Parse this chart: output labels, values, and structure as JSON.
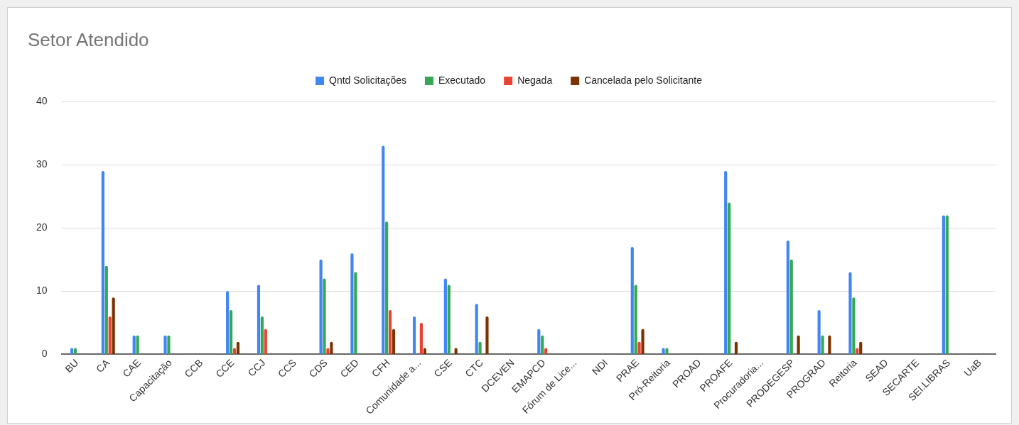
{
  "chart_data": {
    "type": "bar",
    "title": "Setor Atendido",
    "categories": [
      "BU",
      "CA",
      "CAE",
      "Capacitação",
      "CCB",
      "CCE",
      "CCJ",
      "CCS",
      "CDS",
      "CED",
      "CFH",
      "Comunidade a...",
      "CSE",
      "CTC",
      "DCEVEN",
      "EMAPCD",
      "Fórum de Lice...",
      "NDI",
      "PRAE",
      "Pró-Reitoria",
      "PROAD",
      "PROAFE",
      "Procuradoria...",
      "PRODEGESP",
      "PROGRAD",
      "Reitoria",
      "SEAD",
      "SECARTE",
      "SEI.LIBRAS",
      "UaB"
    ],
    "series": [
      {
        "name": "Qntd Solicitações",
        "color": "#4285f4",
        "values": [
          1,
          29,
          3,
          3,
          0,
          10,
          11,
          0,
          15,
          16,
          33,
          6,
          12,
          8,
          0,
          4,
          0,
          0,
          17,
          1,
          0,
          29,
          0,
          18,
          7,
          13,
          0,
          0,
          22,
          0
        ]
      },
      {
        "name": "Executado",
        "color": "#34a853",
        "values": [
          1,
          14,
          3,
          3,
          0,
          7,
          6,
          0,
          12,
          13,
          21,
          0,
          11,
          2,
          0,
          3,
          0,
          0,
          11,
          1,
          0,
          24,
          0,
          15,
          3,
          9,
          0,
          0,
          22,
          0
        ]
      },
      {
        "name": "Negada",
        "color": "#ea4335",
        "values": [
          0,
          6,
          0,
          0,
          0,
          1,
          4,
          0,
          1,
          0,
          7,
          5,
          0,
          0,
          0,
          1,
          0,
          0,
          2,
          0,
          0,
          0,
          0,
          0,
          0,
          1,
          0,
          0,
          0,
          0
        ]
      },
      {
        "name": "Cancelada pelo Solicitante",
        "color": "#7b3300",
        "values": [
          0,
          9,
          0,
          0,
          0,
          2,
          0,
          0,
          2,
          0,
          4,
          1,
          1,
          6,
          0,
          0,
          0,
          0,
          4,
          0,
          0,
          2,
          0,
          3,
          3,
          2,
          0,
          0,
          0,
          0
        ]
      }
    ],
    "ylim": [
      0,
      40
    ],
    "yticks": [
      0,
      10,
      20,
      30,
      40
    ],
    "grid": "y",
    "legend": "top"
  }
}
